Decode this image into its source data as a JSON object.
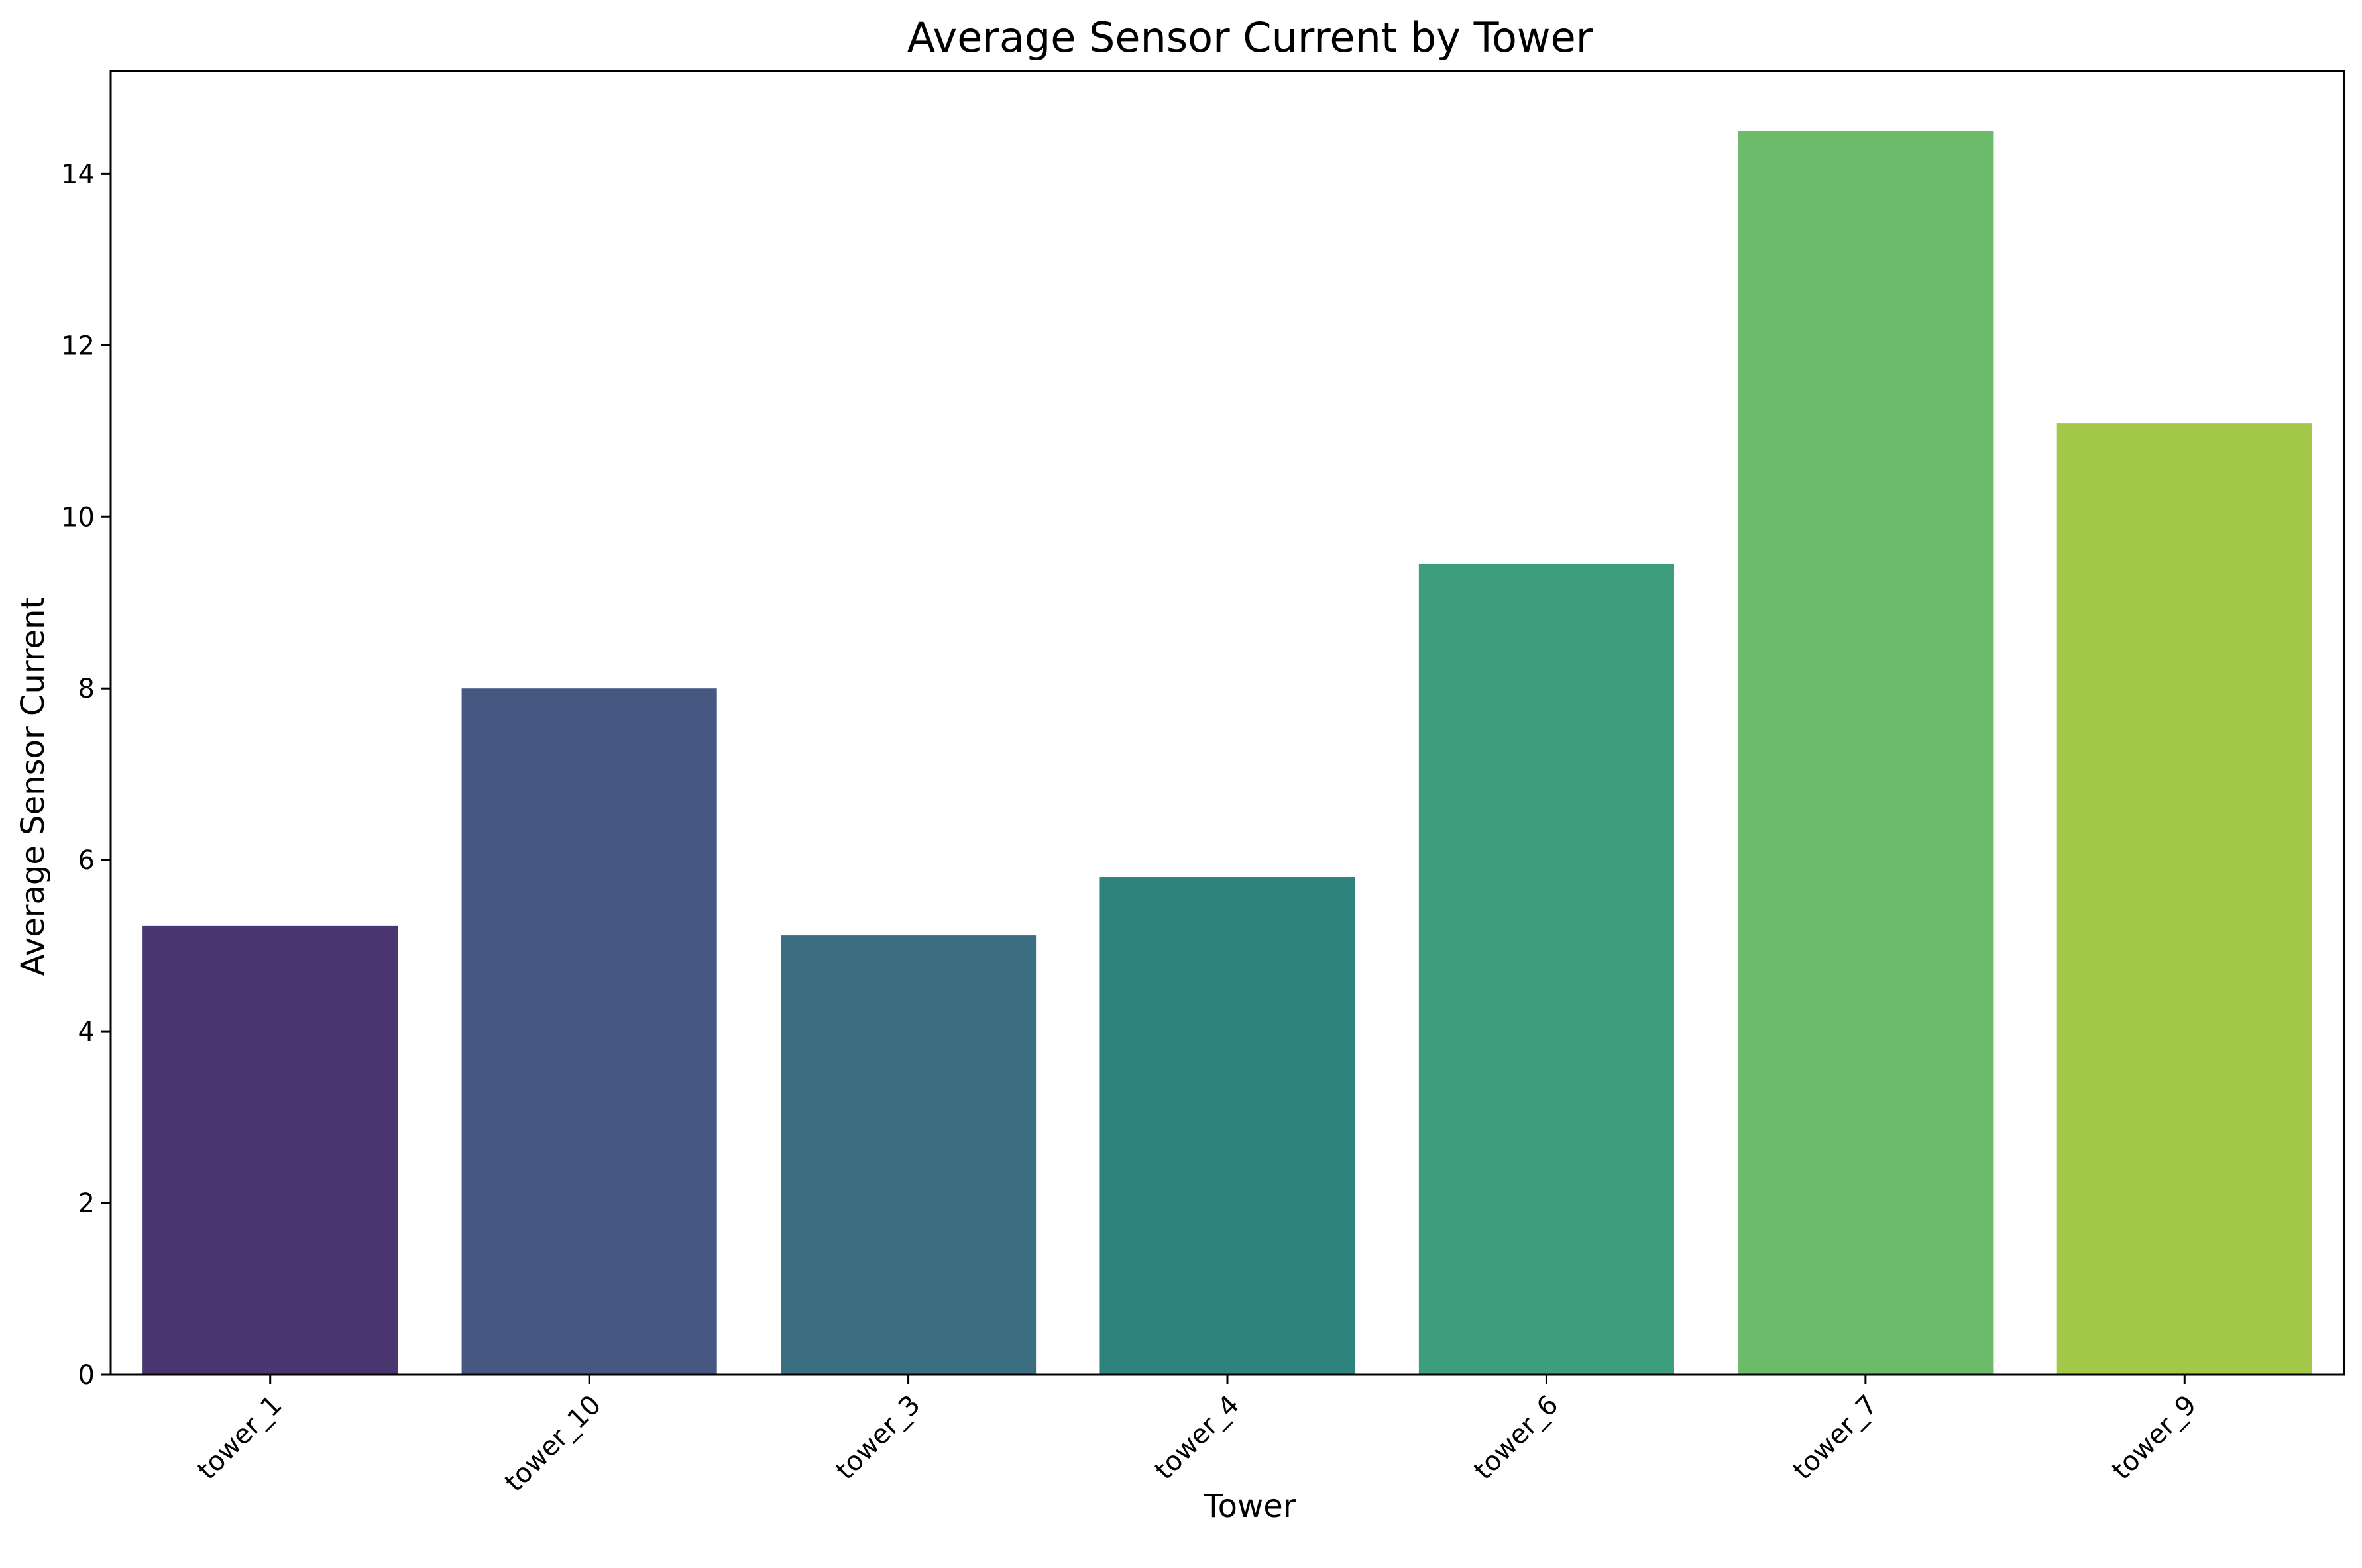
{
  "chart_data": {
    "type": "bar",
    "title": "Average Sensor Current by Tower",
    "xlabel": "Tower",
    "ylabel": "Average Sensor Current",
    "categories": [
      "tower_1",
      "tower_10",
      "tower_3",
      "tower_4",
      "tower_6",
      "tower_7",
      "tower_9"
    ],
    "values": [
      5.23,
      8.0,
      5.12,
      5.8,
      9.45,
      14.5,
      11.09
    ],
    "colors": [
      "#4a3670",
      "#465882",
      "#3a6e80",
      "#2e837d",
      "#3c9e7c",
      "#6bbb6b",
      "#a3c748"
    ],
    "ylim": [
      0,
      15.2
    ],
    "yticks": [
      0,
      2,
      4,
      6,
      8,
      10,
      12,
      14
    ],
    "grid": false,
    "legend": "none"
  }
}
